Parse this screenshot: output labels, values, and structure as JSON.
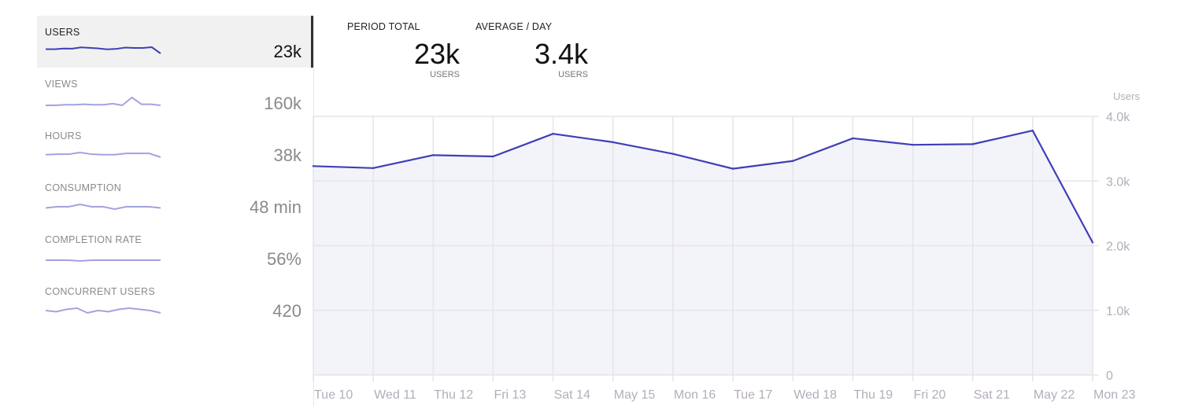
{
  "sidebar": {
    "items": [
      {
        "label": "USERS",
        "value": "23k",
        "active": true,
        "sparkline": [
          3.23,
          3.2,
          3.4,
          3.38,
          3.73,
          3.6,
          3.42,
          3.19,
          3.31,
          3.66,
          3.56,
          3.57,
          3.78,
          2.05
        ]
      },
      {
        "label": "VIEWS",
        "value": "160k",
        "active": false,
        "sparkline": [
          10,
          10,
          10.5,
          10.5,
          11,
          10.5,
          10.5,
          11.5,
          10,
          17,
          11,
          11,
          10
        ]
      },
      {
        "label": "HOURS",
        "value": "38k",
        "active": false,
        "sparkline": [
          2.6,
          2.7,
          2.7,
          3.1,
          2.7,
          2.6,
          2.6,
          2.9,
          2.9,
          2.9,
          2.0
        ]
      },
      {
        "label": "CONSUMPTION",
        "value": "48 min",
        "active": false,
        "sparkline": [
          48,
          48.5,
          48.5,
          49.5,
          48.5,
          48.5,
          47.5,
          48.5,
          48.5,
          48.5,
          48
        ]
      },
      {
        "label": "COMPLETION RATE",
        "value": "56%",
        "active": false,
        "sparkline": [
          56,
          56,
          56,
          55.7,
          56,
          56,
          56,
          56,
          56,
          56,
          56
        ]
      },
      {
        "label": "CONCURRENT USERS",
        "value": "420",
        "active": false,
        "sparkline": [
          419,
          418,
          420,
          421,
          417,
          419,
          418,
          420,
          421,
          420,
          419,
          417
        ]
      }
    ]
  },
  "summary": {
    "period_total": {
      "heading": "PERIOD TOTAL",
      "value": "23k",
      "unit": "USERS"
    },
    "average_day": {
      "heading": "AVERAGE / DAY",
      "value": "3.4k",
      "unit": "USERS"
    }
  },
  "colors": {
    "line": "#3f3fb8",
    "fill": "#f3f4f9",
    "sparkline_inactive": "#a3a3e0"
  },
  "chart_data": {
    "type": "area",
    "ylabel": "Users",
    "ylim": [
      0,
      4000
    ],
    "yticks": [
      "0",
      "1.0k",
      "2.0k",
      "3.0k",
      "4.0k"
    ],
    "yaxis_position": "right",
    "grid": true,
    "categories": [
      "Tue 10",
      "Wed 11",
      "Thu 12",
      "Fri 13",
      "Sat 14",
      "May 15",
      "Mon 16",
      "Tue 17",
      "Wed 18",
      "Thu 19",
      "Fri 20",
      "Sat 21",
      "May 22",
      "Mon 23"
    ],
    "series": [
      {
        "values": [
          3230,
          3200,
          3400,
          3380,
          3730,
          3600,
          3420,
          3190,
          3310,
          3660,
          3560,
          3570,
          3780,
          2050
        ]
      }
    ]
  }
}
